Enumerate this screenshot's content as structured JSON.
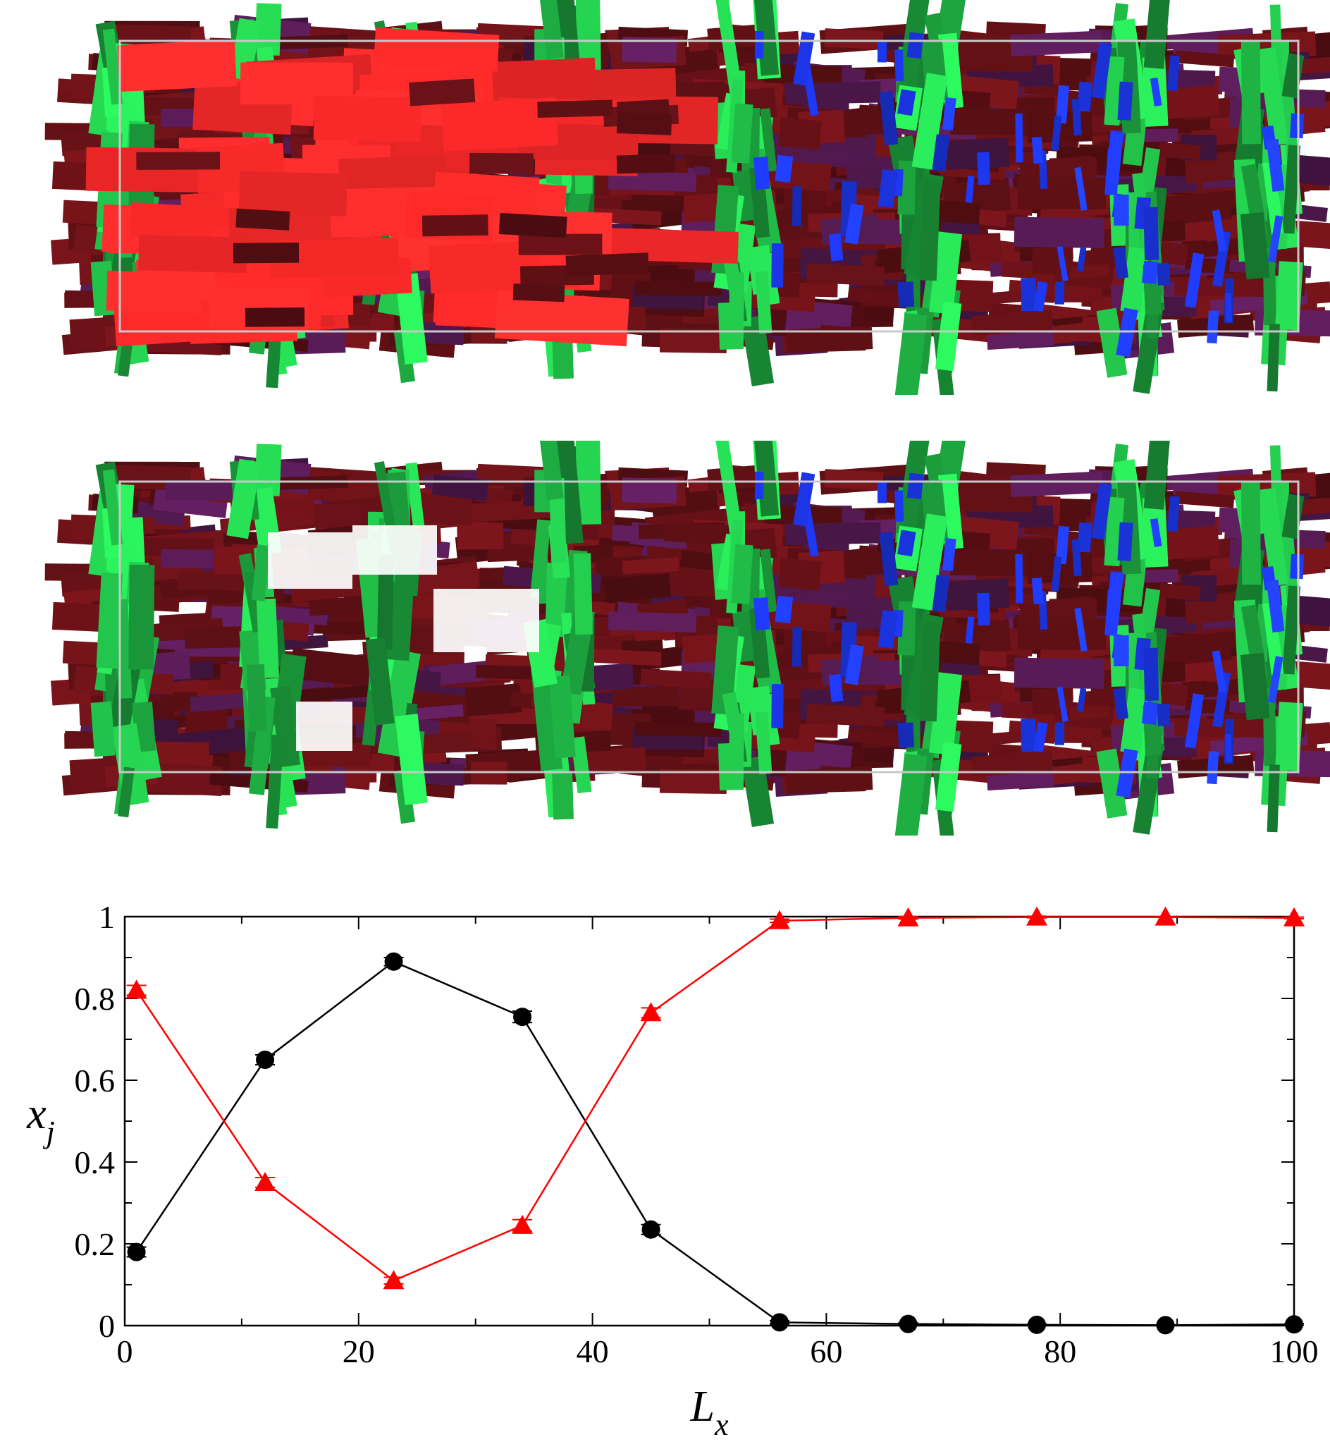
{
  "snapshots": [
    {
      "name": "snapshot-top",
      "colors": {
        "red": "#ff2a2a",
        "green": "#22c24a",
        "maroon": "#5a0f14",
        "blue": "#1f3bff",
        "purple": "#4a1748"
      }
    },
    {
      "name": "snapshot-bottom",
      "colors": {
        "red": "#ff2a2a",
        "green": "#22c24a",
        "maroon": "#5a0f14",
        "blue": "#1f3bff",
        "purple": "#4a1748"
      }
    }
  ],
  "chart_data": {
    "type": "line",
    "xlabel": "L_x",
    "ylabel": "x_j",
    "xlim": [
      0,
      100
    ],
    "ylim": [
      0,
      1
    ],
    "xticks": [
      "0",
      "20",
      "40",
      "60",
      "80",
      "100"
    ],
    "yticks": [
      "0",
      "0.2",
      "0.4",
      "0.6",
      "0.8",
      "1"
    ],
    "grid": false,
    "series": [
      {
        "marker": "circle",
        "color": "#000000",
        "x": [
          1,
          12,
          23,
          34,
          45,
          56,
          67,
          78,
          89,
          100
        ],
        "y": [
          0.18,
          0.65,
          0.89,
          0.755,
          0.235,
          0.008,
          0.004,
          0.002,
          0.001,
          0.003
        ],
        "err": [
          0.012,
          0.012,
          0.01,
          0.014,
          0.012,
          0.004,
          0.003,
          0.002,
          0.001,
          0.002
        ]
      },
      {
        "marker": "triangle",
        "color": "#ff0000",
        "x": [
          1,
          12,
          23,
          34,
          45,
          56,
          67,
          78,
          89,
          100
        ],
        "y": [
          0.82,
          0.35,
          0.11,
          0.245,
          0.765,
          0.99,
          0.997,
          0.999,
          0.999,
          0.997
        ],
        "err": [
          0.012,
          0.012,
          0.008,
          0.014,
          0.012,
          0.004,
          0.003,
          0.002,
          0.001,
          0.002
        ]
      }
    ]
  }
}
